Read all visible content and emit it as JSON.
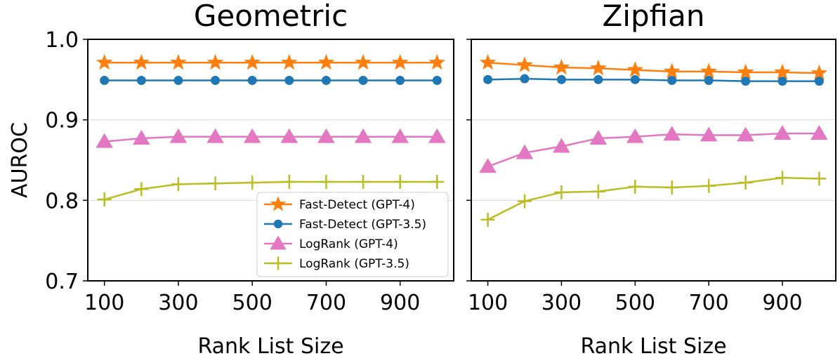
{
  "chart_data": {
    "type": "line",
    "ylabel": "AUROC",
    "ylim": [
      0.7,
      1.0
    ],
    "yticks": [
      0.7,
      0.8,
      0.9,
      1.0
    ],
    "ytick_labels": [
      "0.7",
      "0.8",
      "0.9",
      "1.0"
    ],
    "xlim": [
      55,
      1045
    ],
    "xticks": [
      100,
      300,
      500,
      700,
      900
    ],
    "xtick_labels": [
      "100",
      "300",
      "500",
      "700",
      "900"
    ],
    "grid": "horizontal",
    "legend_location": "lower-right of left panel",
    "series_styles": [
      {
        "name": "Fast-Detect (GPT-4)",
        "color": "#ff7f0e",
        "marker": "star"
      },
      {
        "name": "Fast-Detect (GPT-3.5)",
        "color": "#1f77b4",
        "marker": "circle"
      },
      {
        "name": "LogRank (GPT-4)",
        "color": "#e377c2",
        "marker": "triangle"
      },
      {
        "name": "LogRank (GPT-3.5)",
        "color": "#bcbd22",
        "marker": "plus"
      }
    ],
    "panels": [
      {
        "title": "Geometric",
        "xlabel": "Rank List Size",
        "x": [
          100,
          200,
          300,
          400,
          500,
          600,
          700,
          800,
          900,
          1000
        ],
        "series": [
          {
            "name": "Fast-Detect (GPT-4)",
            "values": [
              0.971,
              0.971,
              0.971,
              0.971,
              0.971,
              0.971,
              0.971,
              0.971,
              0.971,
              0.971
            ]
          },
          {
            "name": "Fast-Detect (GPT-3.5)",
            "values": [
              0.949,
              0.949,
              0.949,
              0.949,
              0.949,
              0.949,
              0.949,
              0.949,
              0.949,
              0.949
            ]
          },
          {
            "name": "LogRank (GPT-4)",
            "values": [
              0.873,
              0.877,
              0.879,
              0.879,
              0.879,
              0.879,
              0.879,
              0.879,
              0.879,
              0.879
            ]
          },
          {
            "name": "LogRank (GPT-3.5)",
            "values": [
              0.801,
              0.814,
              0.82,
              0.821,
              0.822,
              0.823,
              0.823,
              0.823,
              0.823,
              0.823
            ]
          }
        ]
      },
      {
        "title": "Zipfian",
        "xlabel": "Rank List Size",
        "x": [
          100,
          200,
          300,
          400,
          500,
          600,
          700,
          800,
          900,
          1000
        ],
        "series": [
          {
            "name": "Fast-Detect (GPT-4)",
            "values": [
              0.971,
              0.968,
              0.965,
              0.964,
              0.962,
              0.96,
              0.96,
              0.959,
              0.959,
              0.958
            ]
          },
          {
            "name": "Fast-Detect (GPT-3.5)",
            "values": [
              0.95,
              0.951,
              0.95,
              0.95,
              0.95,
              0.949,
              0.949,
              0.948,
              0.948,
              0.948
            ]
          },
          {
            "name": "LogRank (GPT-4)",
            "values": [
              0.842,
              0.859,
              0.867,
              0.877,
              0.879,
              0.882,
              0.881,
              0.881,
              0.883,
              0.883
            ]
          },
          {
            "name": "LogRank (GPT-3.5)",
            "values": [
              0.776,
              0.799,
              0.81,
              0.811,
              0.817,
              0.816,
              0.818,
              0.822,
              0.828,
              0.827
            ]
          }
        ]
      }
    ]
  }
}
